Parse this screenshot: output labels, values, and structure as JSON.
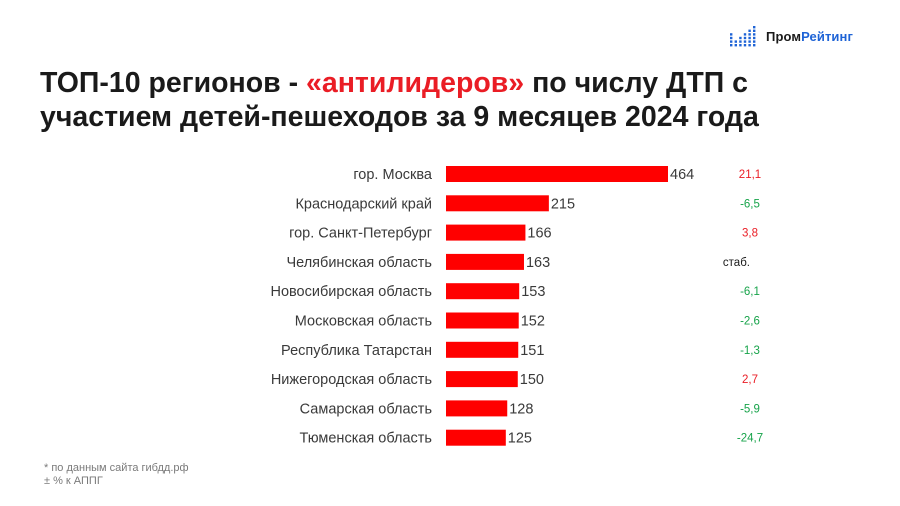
{
  "brand": {
    "part1": "Пром",
    "part2": "Рейтинг",
    "icon": "bar-dots-logo-icon",
    "accent": "#1e63d6"
  },
  "title": {
    "part1": "ТОП-10 регионов - ",
    "highlight": "«антилидеров»",
    "part2": " по числу ДТП с участием детей-пешеходов за 9 месяцев 2024 года"
  },
  "colors": {
    "bar": "#ff0000",
    "negative": "#17a34a",
    "positive": "#ea1d25",
    "neutral": "#1a1a1a"
  },
  "chart_data": {
    "type": "bar",
    "orientation": "horizontal",
    "categories": [
      "гор. Москва",
      "Краснодарский край",
      "гор. Санкт-Петербург",
      "Челябинская область",
      "Новосибирская область",
      "Московская область",
      "Республика Татарстан",
      "Нижегородская область",
      "Самарская область",
      "Тюменская область"
    ],
    "values": [
      464,
      215,
      166,
      163,
      153,
      152,
      151,
      150,
      128,
      125
    ],
    "change_labels": [
      "21,1",
      "-6,5",
      "3,8",
      "стаб.",
      "-6,1",
      "-2,6",
      "-1,3",
      "2,7",
      "-5,9",
      "-24,7"
    ],
    "change_signs": [
      "positive",
      "negative",
      "positive",
      "neutral",
      "negative",
      "negative",
      "negative",
      "positive",
      "negative",
      "negative"
    ],
    "xlim": [
      0,
      464
    ]
  },
  "footnote": {
    "line1": "* по данным сайта гибдд.рф",
    "line2": "± % к АППГ"
  }
}
